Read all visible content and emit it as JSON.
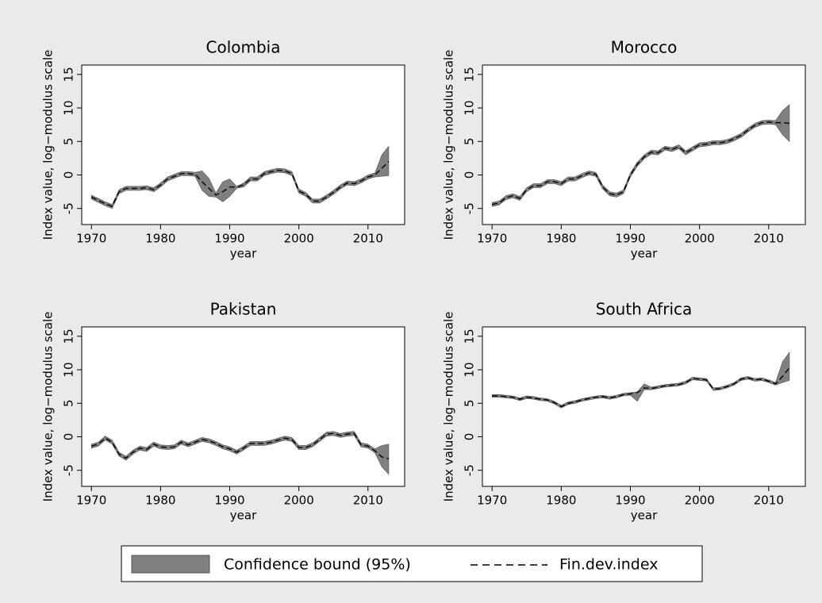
{
  "chart_data": [
    {
      "type": "band-line",
      "title": "Colombia",
      "xlabel": "year",
      "ylabel": "Index value, log−modulus scale",
      "x": [
        1970,
        1971,
        1972,
        1973,
        1974,
        1975,
        1976,
        1977,
        1978,
        1979,
        1980,
        1981,
        1982,
        1983,
        1984,
        1985,
        1986,
        1987,
        1988,
        1989,
        1990,
        1991,
        1992,
        1993,
        1994,
        1995,
        1996,
        1997,
        1998,
        1999,
        2000,
        2001,
        2002,
        2003,
        2004,
        2005,
        2006,
        2007,
        2008,
        2009,
        2010,
        2011,
        2012,
        2013
      ],
      "xlim": [
        1968.6,
        2015.3
      ],
      "xticks": [
        1970,
        1980,
        1990,
        2000,
        2010
      ],
      "ylim": [
        -7.4,
        16.4
      ],
      "yticks": [
        -5,
        0,
        5,
        10,
        15
      ],
      "series": [
        {
          "name": "Confidence bound (95%)",
          "color": "#808080",
          "lower": [
            -3.6,
            -4.1,
            -4.6,
            -5.0,
            -2.8,
            -2.3,
            -2.3,
            -2.3,
            -2.2,
            -2.5,
            -1.8,
            -0.9,
            -0.5,
            -0.1,
            -0.1,
            -0.2,
            -2.3,
            -3.2,
            -3.3,
            -4.0,
            -3.2,
            -2.0,
            -1.8,
            -0.9,
            -0.9,
            -0.1,
            0.2,
            0.4,
            0.3,
            -0.1,
            -2.7,
            -3.2,
            -4.2,
            -4.2,
            -3.6,
            -2.9,
            -2.1,
            -1.5,
            -1.6,
            -1.2,
            -0.6,
            -0.3,
            -0.2,
            -0.1
          ],
          "upper": [
            -3.0,
            -3.5,
            -4.0,
            -4.4,
            -2.2,
            -1.7,
            -1.7,
            -1.7,
            -1.6,
            -1.9,
            -1.2,
            -0.3,
            0.1,
            0.5,
            0.5,
            0.4,
            0.6,
            -0.5,
            -2.7,
            -1.0,
            -0.6,
            -1.7,
            -1.2,
            -0.3,
            -0.3,
            0.5,
            0.8,
            1.0,
            0.9,
            0.5,
            -2.1,
            -2.6,
            -3.6,
            -3.6,
            -3.0,
            -2.3,
            -1.5,
            -0.9,
            -1.0,
            -0.6,
            0.0,
            0.3,
            3.0,
            4.3
          ]
        },
        {
          "name": "Fin.dev.index",
          "color": "#000000",
          "values": [
            -3.3,
            -3.8,
            -4.3,
            -4.7,
            -2.5,
            -2.0,
            -2.0,
            -2.0,
            -1.9,
            -2.2,
            -1.5,
            -0.6,
            -0.2,
            0.2,
            0.2,
            0.1,
            -1.0,
            -2.0,
            -3.0,
            -2.5,
            -1.8,
            -1.8,
            -1.5,
            -0.6,
            -0.6,
            0.2,
            0.5,
            0.7,
            0.6,
            0.2,
            -2.4,
            -2.9,
            -3.9,
            -3.9,
            -3.3,
            -2.6,
            -1.8,
            -1.2,
            -1.3,
            -0.9,
            -0.3,
            0.0,
            1.0,
            2.0
          ]
        }
      ]
    },
    {
      "type": "band-line",
      "title": "Morocco",
      "xlabel": "year",
      "ylabel": "Index value, log−modulus scale",
      "x": [
        1970,
        1971,
        1972,
        1973,
        1974,
        1975,
        1976,
        1977,
        1978,
        1979,
        1980,
        1981,
        1982,
        1983,
        1984,
        1985,
        1986,
        1987,
        1988,
        1989,
        1990,
        1991,
        1992,
        1993,
        1994,
        1995,
        1996,
        1997,
        1998,
        1999,
        2000,
        2001,
        2002,
        2003,
        2004,
        2005,
        2006,
        2007,
        2008,
        2009,
        2010,
        2011,
        2012,
        2013
      ],
      "xlim": [
        1968.6,
        2015.3
      ],
      "xticks": [
        1970,
        1980,
        1990,
        2000,
        2010
      ],
      "ylim": [
        -7.4,
        16.4
      ],
      "yticks": [
        -5,
        0,
        5,
        10,
        15
      ],
      "series": [
        {
          "color": "#808080",
          "lower": [
            -4.7,
            -4.5,
            -3.7,
            -3.4,
            -3.8,
            -2.5,
            -1.9,
            -1.9,
            -1.3,
            -1.3,
            -1.6,
            -0.9,
            -0.9,
            -0.4,
            0.0,
            -0.2,
            -2.1,
            -3.1,
            -3.3,
            -2.8,
            -0.3,
            1.3,
            2.4,
            3.1,
            3.0,
            3.7,
            3.5,
            3.9,
            3.0,
            3.6,
            4.2,
            4.3,
            4.5,
            4.5,
            4.7,
            5.1,
            5.6,
            6.4,
            7.1,
            7.5,
            7.6,
            7.5,
            6.0,
            5.0
          ],
          "upper": [
            -4.1,
            -3.9,
            -3.1,
            -2.8,
            -3.2,
            -1.9,
            -1.3,
            -1.3,
            -0.7,
            -0.7,
            -1.0,
            -0.3,
            -0.3,
            0.2,
            0.6,
            0.4,
            -1.5,
            -2.5,
            -2.7,
            -2.2,
            0.3,
            1.9,
            3.0,
            3.7,
            3.6,
            4.3,
            4.1,
            4.5,
            3.6,
            4.2,
            4.8,
            4.9,
            5.1,
            5.1,
            5.3,
            5.7,
            6.2,
            7.0,
            7.7,
            8.1,
            8.2,
            8.1,
            9.6,
            10.5
          ]
        },
        {
          "color": "#000000",
          "values": [
            -4.4,
            -4.2,
            -3.4,
            -3.1,
            -3.5,
            -2.2,
            -1.6,
            -1.6,
            -1.0,
            -1.0,
            -1.3,
            -0.6,
            -0.6,
            -0.1,
            0.3,
            0.1,
            -1.8,
            -2.8,
            -3.0,
            -2.5,
            0.0,
            1.6,
            2.7,
            3.4,
            3.3,
            4.0,
            3.8,
            4.2,
            3.3,
            3.9,
            4.5,
            4.6,
            4.8,
            4.8,
            5.0,
            5.4,
            5.9,
            6.7,
            7.4,
            7.8,
            7.9,
            7.8,
            7.8,
            7.7
          ]
        }
      ]
    },
    {
      "type": "band-line",
      "title": "Pakistan",
      "xlabel": "year",
      "ylabel": "Index value, log−modulus scale",
      "x": [
        1970,
        1971,
        1972,
        1973,
        1974,
        1975,
        1976,
        1977,
        1978,
        1979,
        1980,
        1981,
        1982,
        1983,
        1984,
        1985,
        1986,
        1987,
        1988,
        1989,
        1990,
        1991,
        1992,
        1993,
        1994,
        1995,
        1996,
        1997,
        1998,
        1999,
        2000,
        2001,
        2002,
        2003,
        2004,
        2005,
        2006,
        2007,
        2008,
        2009,
        2010,
        2011,
        2012,
        2013
      ],
      "xlim": [
        1968.6,
        2015.3
      ],
      "xticks": [
        1970,
        1980,
        1990,
        2000,
        2010
      ],
      "ylim": [
        -7.4,
        16.4
      ],
      "yticks": [
        -5,
        0,
        5,
        10,
        15
      ],
      "series": [
        {
          "color": "#808080",
          "lower": [
            -1.7,
            -1.4,
            -0.5,
            -1.1,
            -2.9,
            -3.5,
            -2.6,
            -2.0,
            -2.2,
            -1.4,
            -1.8,
            -1.9,
            -1.8,
            -1.1,
            -1.5,
            -1.1,
            -0.7,
            -0.9,
            -1.3,
            -1.8,
            -2.1,
            -2.6,
            -2.0,
            -1.3,
            -1.3,
            -1.3,
            -1.1,
            -0.8,
            -0.5,
            -0.7,
            -1.9,
            -1.9,
            -1.5,
            -0.7,
            0.1,
            0.2,
            -0.1,
            0.1,
            0.2,
            -1.5,
            -1.7,
            -2.4,
            -4.5,
            -5.6
          ],
          "upper": [
            -1.1,
            -0.8,
            0.1,
            -0.5,
            -2.3,
            -2.9,
            -2.0,
            -1.4,
            -1.6,
            -0.8,
            -1.2,
            -1.3,
            -1.2,
            -0.5,
            -0.9,
            -0.5,
            -0.1,
            -0.3,
            -0.7,
            -1.2,
            -1.5,
            -2.0,
            -1.4,
            -0.7,
            -0.7,
            -0.7,
            -0.5,
            -0.2,
            0.1,
            -0.1,
            -1.3,
            -1.3,
            -0.9,
            -0.1,
            0.7,
            0.8,
            0.5,
            0.7,
            0.8,
            -0.9,
            -1.1,
            -1.8,
            -1.3,
            -1.1
          ]
        },
        {
          "color": "#000000",
          "values": [
            -1.4,
            -1.1,
            -0.2,
            -0.8,
            -2.6,
            -3.2,
            -2.3,
            -1.7,
            -1.9,
            -1.1,
            -1.5,
            -1.6,
            -1.5,
            -0.8,
            -1.2,
            -0.8,
            -0.4,
            -0.6,
            -1.0,
            -1.5,
            -1.8,
            -2.3,
            -1.7,
            -1.0,
            -1.0,
            -1.0,
            -0.8,
            -0.5,
            -0.2,
            -0.4,
            -1.6,
            -1.6,
            -1.2,
            -0.4,
            0.4,
            0.5,
            0.2,
            0.4,
            0.5,
            -1.2,
            -1.4,
            -2.1,
            -3.0,
            -3.3
          ]
        }
      ]
    },
    {
      "type": "band-line",
      "title": "South Africa",
      "xlabel": "year",
      "ylabel": "Index value, log−modulus scale",
      "x": [
        1970,
        1971,
        1972,
        1973,
        1974,
        1975,
        1976,
        1977,
        1978,
        1979,
        1980,
        1981,
        1982,
        1983,
        1984,
        1985,
        1986,
        1987,
        1988,
        1989,
        1990,
        1991,
        1992,
        1993,
        1994,
        1995,
        1996,
        1997,
        1998,
        1999,
        2000,
        2001,
        2002,
        2003,
        2004,
        2005,
        2006,
        2007,
        2008,
        2009,
        2010,
        2011,
        2012,
        2013
      ],
      "xlim": [
        1968.6,
        2015.3
      ],
      "xticks": [
        1970,
        1980,
        1990,
        2000,
        2010
      ],
      "ylim": [
        -7.4,
        16.4
      ],
      "yticks": [
        -5,
        0,
        5,
        10,
        15
      ],
      "series": [
        {
          "color": "#808080",
          "lower": [
            5.9,
            5.9,
            5.8,
            5.7,
            5.4,
            5.7,
            5.6,
            5.4,
            5.3,
            4.9,
            4.3,
            4.8,
            5.0,
            5.3,
            5.5,
            5.7,
            5.8,
            5.6,
            5.8,
            6.1,
            6.2,
            5.3,
            7.0,
            7.0,
            7.2,
            7.4,
            7.5,
            7.6,
            7.9,
            8.5,
            8.4,
            8.3,
            6.9,
            7.0,
            7.3,
            7.7,
            8.4,
            8.6,
            8.3,
            8.4,
            8.1,
            7.7,
            8.1,
            8.4
          ],
          "upper": [
            6.3,
            6.3,
            6.2,
            6.1,
            5.8,
            6.1,
            6.0,
            5.8,
            5.7,
            5.3,
            4.7,
            5.2,
            5.4,
            5.7,
            5.9,
            6.1,
            6.2,
            6.0,
            6.2,
            6.5,
            6.6,
            6.7,
            7.9,
            7.4,
            7.6,
            7.8,
            7.9,
            8.0,
            8.3,
            8.9,
            8.8,
            8.7,
            7.3,
            7.4,
            7.7,
            8.1,
            8.8,
            9.0,
            8.7,
            8.8,
            8.5,
            8.1,
            11.2,
            12.6
          ]
        },
        {
          "color": "#000000",
          "values": [
            6.1,
            6.1,
            6.0,
            5.9,
            5.6,
            5.9,
            5.8,
            5.6,
            5.5,
            5.1,
            4.5,
            5.0,
            5.2,
            5.5,
            5.7,
            5.9,
            6.0,
            5.8,
            6.0,
            6.3,
            6.4,
            6.6,
            7.3,
            7.2,
            7.4,
            7.6,
            7.7,
            7.8,
            8.1,
            8.7,
            8.6,
            8.5,
            7.1,
            7.2,
            7.5,
            7.9,
            8.6,
            8.8,
            8.5,
            8.6,
            8.3,
            7.9,
            9.0,
            10.3
          ]
        }
      ]
    }
  ]
}
